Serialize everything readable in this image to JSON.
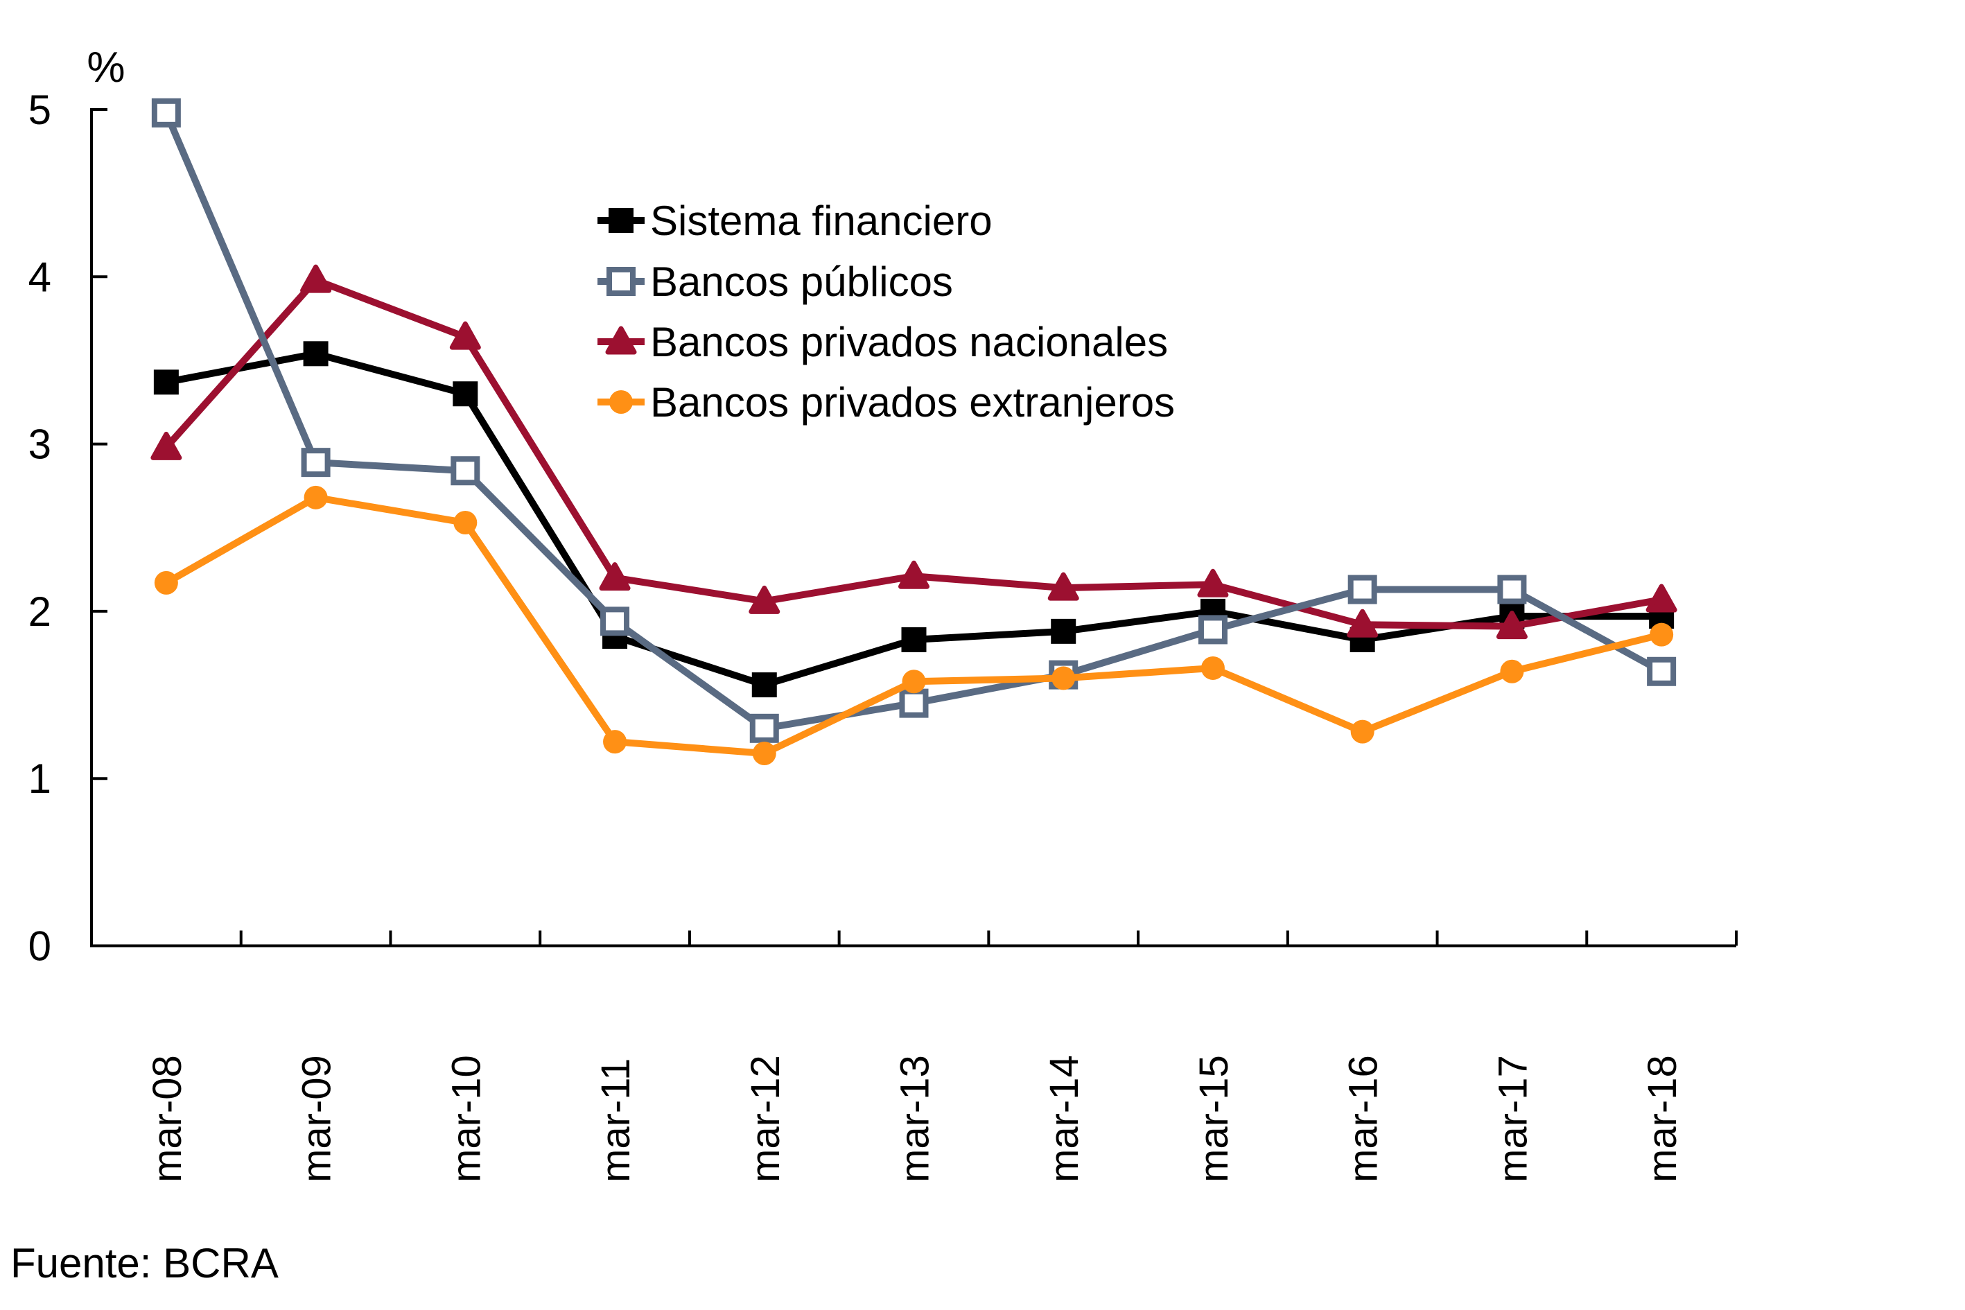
{
  "page": {
    "source_note": "Fuente: BCRA"
  },
  "chart_data": {
    "type": "line",
    "title": "",
    "unit_label": "%",
    "xlabel": "",
    "ylabel": "%",
    "ylim": [
      0,
      5
    ],
    "grid": false,
    "legend_position": "inside-top-left",
    "categories": [
      "mar-08",
      "mar-09",
      "mar-10",
      "mar-11",
      "mar-12",
      "mar-13",
      "mar-14",
      "mar-15",
      "mar-16",
      "mar-17",
      "mar-18"
    ],
    "yticks": [
      0,
      1,
      2,
      3,
      4,
      5
    ],
    "series": [
      {
        "name": "Sistema financiero",
        "color": "#000000",
        "marker": "square-filled",
        "values": [
          3.37,
          3.54,
          3.3,
          1.85,
          1.56,
          1.83,
          1.88,
          2.0,
          1.83,
          1.97,
          1.97
        ]
      },
      {
        "name": "Bancos públicos",
        "color": "#5a6b83",
        "marker": "square-open",
        "values": [
          4.98,
          2.89,
          2.84,
          1.94,
          1.3,
          1.45,
          1.62,
          1.89,
          2.13,
          2.13,
          1.64
        ]
      },
      {
        "name": "Bancos privados nacionales",
        "color": "#9c1030",
        "marker": "triangle-filled",
        "values": [
          2.98,
          3.98,
          3.64,
          2.2,
          2.06,
          2.21,
          2.14,
          2.16,
          1.92,
          1.91,
          2.07
        ]
      },
      {
        "name": "Bancos privados extranjeros",
        "color": "#ff9015",
        "marker": "circle-filled",
        "values": [
          2.17,
          2.68,
          2.53,
          1.22,
          1.15,
          1.58,
          1.6,
          1.66,
          1.28,
          1.64,
          1.86
        ]
      }
    ],
    "draw_order": [
      0,
      2,
      1,
      3
    ]
  }
}
